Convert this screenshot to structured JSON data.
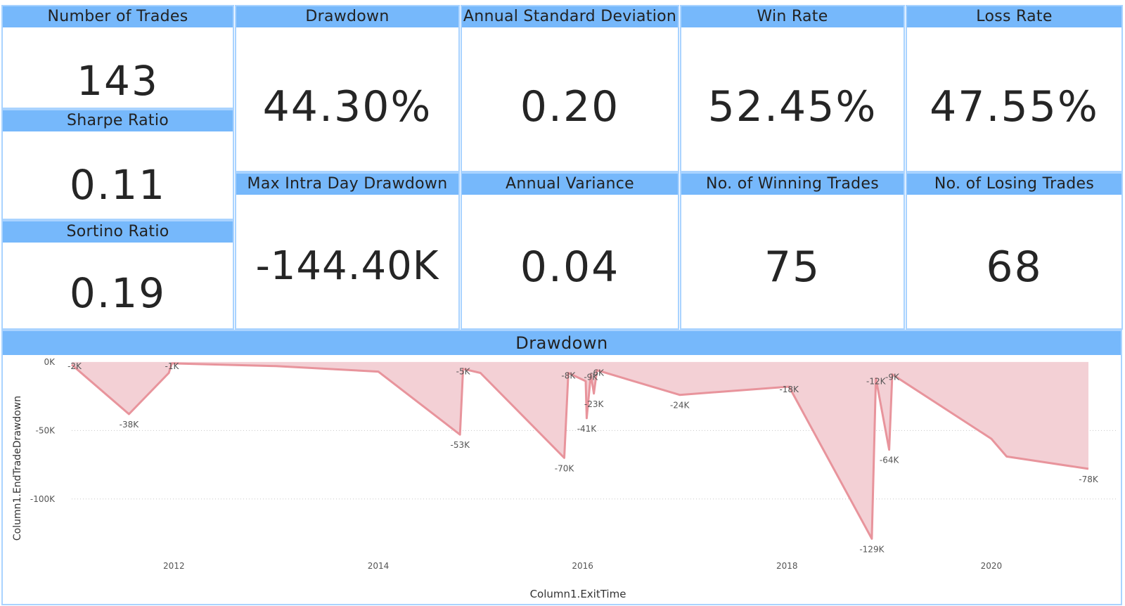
{
  "cards": {
    "number_of_trades": {
      "title": "Number of Trades",
      "value": "143"
    },
    "sharpe_ratio": {
      "title": "Sharpe Ratio",
      "value": "0.11"
    },
    "sortino_ratio": {
      "title": "Sortino Ratio",
      "value": "0.19"
    },
    "drawdown": {
      "title": "Drawdown",
      "value": "44.30%"
    },
    "max_intraday_drawdown": {
      "title": "Max Intra Day Drawdown",
      "value": "-144.40K"
    },
    "annual_std_dev": {
      "title": "Annual Standard Deviation",
      "value": "0.20"
    },
    "annual_variance": {
      "title": "Annual Variance",
      "value": "0.04"
    },
    "win_rate": {
      "title": "Win Rate",
      "value": "52.45%"
    },
    "winning_trades": {
      "title": "No. of Winning Trades",
      "value": "75"
    },
    "loss_rate": {
      "title": "Loss Rate",
      "value": "47.55%"
    },
    "losing_trades": {
      "title": "No. of Losing Trades",
      "value": "68"
    }
  },
  "chart_data": {
    "type": "area",
    "title": "Drawdown",
    "xlabel": "Column1.ExitTime",
    "ylabel": "Column1.EndTradeDrawdown",
    "xlim": [
      2011.0,
      2020.95
    ],
    "ylim": [
      -135000,
      1000
    ],
    "x_ticks": [
      2012,
      2014,
      2016,
      2018,
      2020
    ],
    "y_ticks": [
      {
        "value": 0,
        "label": "0K"
      },
      {
        "value": -50000,
        "label": "-50K"
      },
      {
        "value": -100000,
        "label": "-100K"
      }
    ],
    "grid": true,
    "colors": {
      "line": "#e8949c",
      "fill": "#f3d0d5",
      "title_bar": "#76b8fb",
      "border": "#a9d3ff"
    },
    "series": [
      {
        "values": [
          {
            "x": 2011.0,
            "y": -2000,
            "label": "-2K"
          },
          {
            "x": 2011.56,
            "y": -38000,
            "label": "-38K"
          },
          {
            "x": 2011.95,
            "y": -8000
          },
          {
            "x": 2011.98,
            "y": -1000,
            "label": "-1K"
          },
          {
            "x": 2012.0,
            "y": -1000
          },
          {
            "x": 2013.0,
            "y": -3000
          },
          {
            "x": 2014.0,
            "y": -7000
          },
          {
            "x": 2014.8,
            "y": -53000,
            "label": "-53K"
          },
          {
            "x": 2014.83,
            "y": -5000,
            "label": "-5K"
          },
          {
            "x": 2015.0,
            "y": -8000
          },
          {
            "x": 2015.82,
            "y": -70000,
            "label": "-70K"
          },
          {
            "x": 2015.86,
            "y": -8000,
            "label": "-8K"
          },
          {
            "x": 2016.03,
            "y": -14000
          },
          {
            "x": 2016.04,
            "y": -41000,
            "label": "-41K"
          },
          {
            "x": 2016.08,
            "y": -9000,
            "label": "-9K"
          },
          {
            "x": 2016.11,
            "y": -23000,
            "label": "-23K"
          },
          {
            "x": 2016.14,
            "y": -6000,
            "label": "-6K"
          },
          {
            "x": 2016.95,
            "y": -24000,
            "label": "-24K"
          },
          {
            "x": 2018.02,
            "y": -18000,
            "label": "-18K"
          },
          {
            "x": 2018.83,
            "y": -129000,
            "label": "-129K"
          },
          {
            "x": 2018.87,
            "y": -12000,
            "label": "-12K"
          },
          {
            "x": 2019.0,
            "y": -64000,
            "label": "-64K"
          },
          {
            "x": 2019.03,
            "y": -9000,
            "label": "-9K"
          },
          {
            "x": 2020.0,
            "y": -56000
          },
          {
            "x": 2020.15,
            "y": -69000
          },
          {
            "x": 2020.95,
            "y": -78000,
            "label": "-78K"
          }
        ]
      }
    ]
  }
}
